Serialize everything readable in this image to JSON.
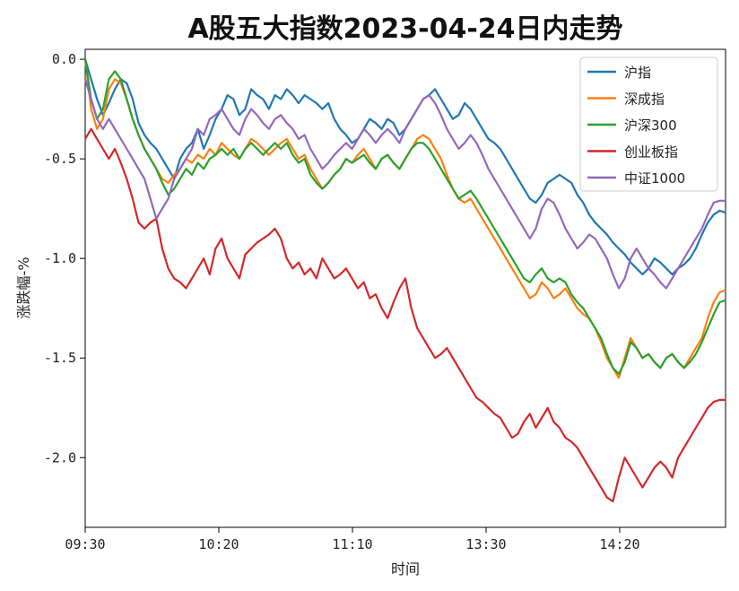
{
  "chart_data": {
    "type": "line",
    "title": "A股五大指数2023-04-24日内走势",
    "xlabel": "时间",
    "ylabel": "涨跌幅-%",
    "ylim": [
      -2.35,
      0.05
    ],
    "yticks": [
      0.0,
      -0.5,
      -1.0,
      -1.5,
      -2.0
    ],
    "ytick_labels": [
      "0.0",
      "-0.5",
      "-1.0",
      "-1.5",
      "-2.0"
    ],
    "xticks": [
      "09:30",
      "10:20",
      "11:10",
      "13:30",
      "14:20"
    ],
    "grid": false,
    "legend_position": "top-right",
    "series": [
      {
        "name": "沪指",
        "color": "#1f77b4",
        "values": [
          0.0,
          -0.1,
          -0.2,
          -0.28,
          -0.22,
          -0.15,
          -0.1,
          -0.12,
          -0.2,
          -0.32,
          -0.38,
          -0.42,
          -0.45,
          -0.5,
          -0.55,
          -0.6,
          -0.5,
          -0.45,
          -0.42,
          -0.35,
          -0.45,
          -0.38,
          -0.3,
          -0.25,
          -0.18,
          -0.2,
          -0.28,
          -0.25,
          -0.15,
          -0.18,
          -0.2,
          -0.25,
          -0.18,
          -0.2,
          -0.15,
          -0.18,
          -0.22,
          -0.18,
          -0.2,
          -0.22,
          -0.25,
          -0.22,
          -0.3,
          -0.35,
          -0.38,
          -0.42,
          -0.4,
          -0.35,
          -0.3,
          -0.32,
          -0.35,
          -0.3,
          -0.32,
          -0.38,
          -0.35,
          -0.3,
          -0.25,
          -0.2,
          -0.18,
          -0.15,
          -0.2,
          -0.25,
          -0.3,
          -0.28,
          -0.22,
          -0.25,
          -0.3,
          -0.35,
          -0.4,
          -0.42,
          -0.45,
          -0.5,
          -0.55,
          -0.6,
          -0.65,
          -0.7,
          -0.72,
          -0.68,
          -0.62,
          -0.6,
          -0.58,
          -0.6,
          -0.62,
          -0.68,
          -0.72,
          -0.78,
          -0.82,
          -0.85,
          -0.88,
          -0.92,
          -0.95,
          -0.98,
          -1.02,
          -1.05,
          -1.08,
          -1.05,
          -1.0,
          -1.02,
          -1.05,
          -1.08,
          -1.05,
          -1.03,
          -1.0,
          -0.95,
          -0.88,
          -0.82,
          -0.78,
          -0.76,
          -0.77
        ]
      },
      {
        "name": "深成指",
        "color": "#ff7f0e",
        "values": [
          0.0,
          -0.25,
          -0.35,
          -0.3,
          -0.15,
          -0.1,
          -0.12,
          -0.2,
          -0.3,
          -0.38,
          -0.45,
          -0.5,
          -0.55,
          -0.6,
          -0.62,
          -0.58,
          -0.55,
          -0.5,
          -0.52,
          -0.48,
          -0.5,
          -0.45,
          -0.48,
          -0.42,
          -0.45,
          -0.48,
          -0.5,
          -0.45,
          -0.4,
          -0.42,
          -0.45,
          -0.48,
          -0.45,
          -0.42,
          -0.4,
          -0.45,
          -0.5,
          -0.48,
          -0.55,
          -0.6,
          -0.65,
          -0.62,
          -0.58,
          -0.55,
          -0.5,
          -0.52,
          -0.48,
          -0.45,
          -0.5,
          -0.55,
          -0.5,
          -0.48,
          -0.52,
          -0.55,
          -0.5,
          -0.45,
          -0.4,
          -0.38,
          -0.4,
          -0.45,
          -0.5,
          -0.58,
          -0.65,
          -0.7,
          -0.72,
          -0.7,
          -0.75,
          -0.8,
          -0.85,
          -0.9,
          -0.95,
          -1.0,
          -1.05,
          -1.1,
          -1.15,
          -1.2,
          -1.18,
          -1.12,
          -1.15,
          -1.2,
          -1.18,
          -1.15,
          -1.2,
          -1.25,
          -1.28,
          -1.3,
          -1.35,
          -1.42,
          -1.5,
          -1.55,
          -1.6,
          -1.5,
          -1.4,
          -1.45,
          -1.5,
          -1.48,
          -1.52,
          -1.55,
          -1.5,
          -1.48,
          -1.52,
          -1.55,
          -1.5,
          -1.45,
          -1.4,
          -1.3,
          -1.22,
          -1.17,
          -1.16
        ]
      },
      {
        "name": "沪深300",
        "color": "#2ca02c",
        "values": [
          0.0,
          -0.2,
          -0.3,
          -0.25,
          -0.1,
          -0.06,
          -0.1,
          -0.2,
          -0.3,
          -0.38,
          -0.45,
          -0.5,
          -0.55,
          -0.62,
          -0.68,
          -0.65,
          -0.6,
          -0.55,
          -0.58,
          -0.52,
          -0.55,
          -0.5,
          -0.48,
          -0.45,
          -0.48,
          -0.45,
          -0.5,
          -0.45,
          -0.42,
          -0.45,
          -0.48,
          -0.45,
          -0.42,
          -0.45,
          -0.42,
          -0.48,
          -0.52,
          -0.5,
          -0.58,
          -0.62,
          -0.65,
          -0.62,
          -0.58,
          -0.55,
          -0.5,
          -0.52,
          -0.5,
          -0.48,
          -0.52,
          -0.55,
          -0.5,
          -0.48,
          -0.52,
          -0.55,
          -0.5,
          -0.45,
          -0.42,
          -0.42,
          -0.45,
          -0.5,
          -0.55,
          -0.6,
          -0.65,
          -0.7,
          -0.68,
          -0.66,
          -0.7,
          -0.75,
          -0.8,
          -0.85,
          -0.9,
          -0.95,
          -1.0,
          -1.05,
          -1.1,
          -1.12,
          -1.08,
          -1.05,
          -1.1,
          -1.12,
          -1.1,
          -1.12,
          -1.18,
          -1.22,
          -1.25,
          -1.3,
          -1.35,
          -1.4,
          -1.48,
          -1.55,
          -1.58,
          -1.52,
          -1.42,
          -1.45,
          -1.5,
          -1.48,
          -1.52,
          -1.55,
          -1.5,
          -1.48,
          -1.52,
          -1.55,
          -1.52,
          -1.48,
          -1.42,
          -1.35,
          -1.28,
          -1.22,
          -1.21
        ]
      },
      {
        "name": "创业板指",
        "color": "#d62728",
        "values": [
          -0.4,
          -0.35,
          -0.4,
          -0.45,
          -0.5,
          -0.45,
          -0.52,
          -0.6,
          -0.7,
          -0.82,
          -0.85,
          -0.82,
          -0.8,
          -0.95,
          -1.05,
          -1.1,
          -1.12,
          -1.15,
          -1.1,
          -1.05,
          -1.0,
          -1.08,
          -0.95,
          -0.9,
          -1.0,
          -1.05,
          -1.1,
          -0.98,
          -0.95,
          -0.92,
          -0.9,
          -0.88,
          -0.85,
          -0.9,
          -1.0,
          -1.05,
          -1.02,
          -1.08,
          -1.05,
          -1.1,
          -1.0,
          -1.05,
          -1.1,
          -1.08,
          -1.05,
          -1.1,
          -1.15,
          -1.12,
          -1.2,
          -1.18,
          -1.25,
          -1.3,
          -1.22,
          -1.15,
          -1.1,
          -1.25,
          -1.35,
          -1.4,
          -1.45,
          -1.5,
          -1.48,
          -1.45,
          -1.5,
          -1.55,
          -1.6,
          -1.65,
          -1.7,
          -1.72,
          -1.75,
          -1.78,
          -1.8,
          -1.85,
          -1.9,
          -1.88,
          -1.82,
          -1.78,
          -1.85,
          -1.8,
          -1.75,
          -1.82,
          -1.85,
          -1.9,
          -1.92,
          -1.95,
          -2.0,
          -2.05,
          -2.1,
          -2.15,
          -2.2,
          -2.22,
          -2.1,
          -2.0,
          -2.05,
          -2.1,
          -2.15,
          -2.1,
          -2.05,
          -2.02,
          -2.05,
          -2.1,
          -2.0,
          -1.95,
          -1.9,
          -1.85,
          -1.8,
          -1.75,
          -1.72,
          -1.71,
          -1.71
        ]
      },
      {
        "name": "中证1000",
        "color": "#9467bd",
        "values": [
          -0.1,
          -0.2,
          -0.3,
          -0.35,
          -0.3,
          -0.35,
          -0.4,
          -0.45,
          -0.5,
          -0.55,
          -0.6,
          -0.7,
          -0.8,
          -0.75,
          -0.7,
          -0.6,
          -0.55,
          -0.5,
          -0.45,
          -0.35,
          -0.38,
          -0.3,
          -0.28,
          -0.25,
          -0.3,
          -0.35,
          -0.38,
          -0.3,
          -0.25,
          -0.28,
          -0.32,
          -0.35,
          -0.3,
          -0.28,
          -0.32,
          -0.35,
          -0.4,
          -0.38,
          -0.45,
          -0.5,
          -0.55,
          -0.52,
          -0.48,
          -0.45,
          -0.42,
          -0.45,
          -0.4,
          -0.35,
          -0.38,
          -0.42,
          -0.38,
          -0.35,
          -0.38,
          -0.42,
          -0.35,
          -0.3,
          -0.25,
          -0.2,
          -0.18,
          -0.22,
          -0.28,
          -0.35,
          -0.4,
          -0.45,
          -0.42,
          -0.38,
          -0.42,
          -0.48,
          -0.55,
          -0.6,
          -0.65,
          -0.7,
          -0.75,
          -0.8,
          -0.85,
          -0.9,
          -0.85,
          -0.75,
          -0.7,
          -0.72,
          -0.78,
          -0.85,
          -0.9,
          -0.95,
          -0.92,
          -0.88,
          -0.9,
          -0.95,
          -1.0,
          -1.08,
          -1.15,
          -1.1,
          -1.0,
          -0.95,
          -1.0,
          -1.05,
          -1.08,
          -1.12,
          -1.15,
          -1.1,
          -1.05,
          -1.0,
          -0.95,
          -0.9,
          -0.85,
          -0.78,
          -0.72,
          -0.71,
          -0.71
        ]
      }
    ]
  }
}
